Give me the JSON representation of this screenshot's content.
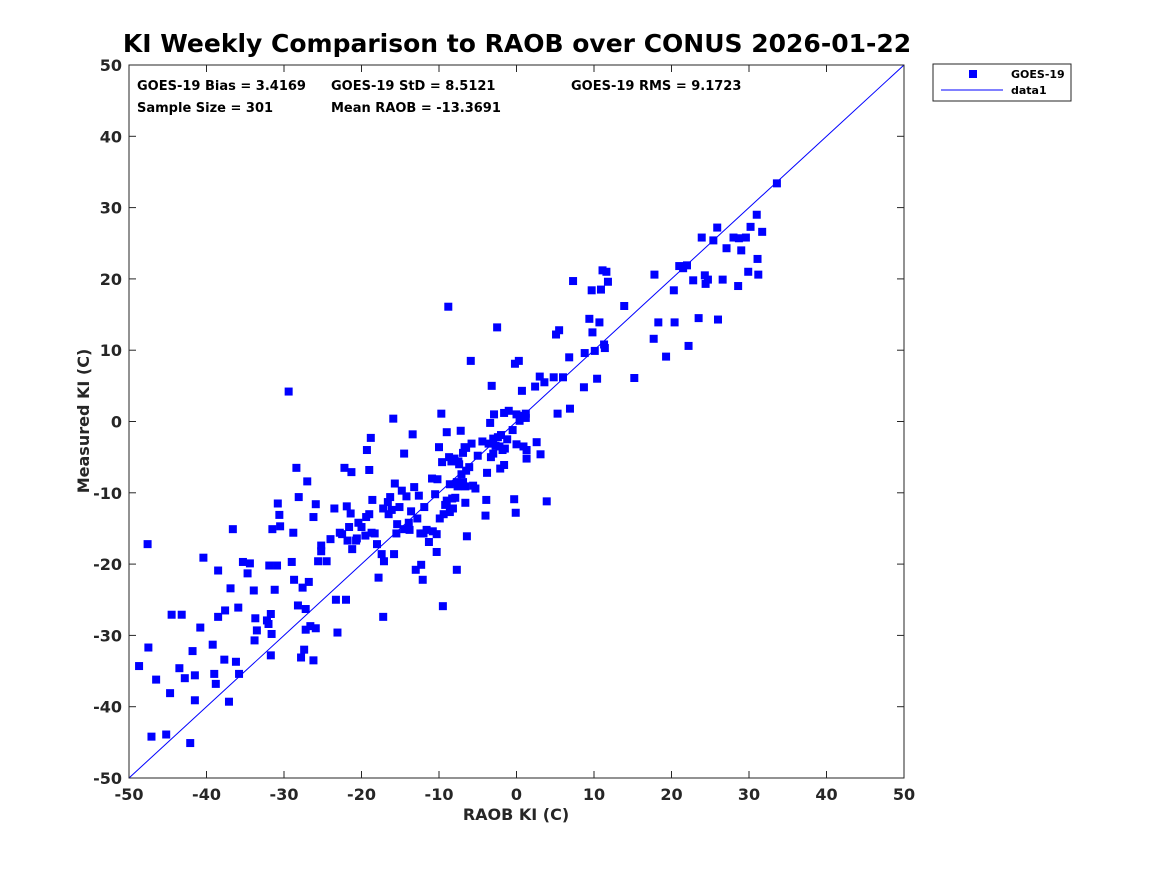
{
  "chart_data": {
    "type": "scatter",
    "title": "KI Weekly Comparison to RAOB over CONUS 2026-01-22",
    "xlabel": "RAOB KI (C)",
    "ylabel": "Measured KI (C)",
    "xlim": [
      -50,
      50
    ],
    "ylim": [
      -50,
      50
    ],
    "xticks": [
      "-50",
      "-40",
      "-30",
      "-20",
      "-10",
      "0",
      "10",
      "20",
      "30",
      "40",
      "50"
    ],
    "yticks": [
      "50",
      "40",
      "30",
      "20",
      "10",
      "0",
      "-10",
      "-20",
      "-30",
      "-40",
      "-50"
    ],
    "grid": false,
    "legend_position": "outside-top-right",
    "stats": {
      "bias": "GOES-19 Bias = 3.4169",
      "std": "GOES-19 StD = 8.5121",
      "rms": "GOES-19 RMS = 9.1723",
      "sample_size": "Sample Size = 301",
      "mean_raob": "Mean RAOB = -13.3691"
    },
    "series": [
      {
        "name": "GOES-19",
        "kind": "scatter",
        "marker": "square",
        "color": "#0000ff",
        "points": [
          [
            -48.7,
            -34.3
          ],
          [
            -47.6,
            -17.2
          ],
          [
            -47.5,
            -31.7
          ],
          [
            -47.1,
            -44.2
          ],
          [
            -46.5,
            -36.2
          ],
          [
            -45.2,
            -43.9
          ],
          [
            -44.7,
            -38.1
          ],
          [
            -44.5,
            -27.1
          ],
          [
            -43.5,
            -34.6
          ],
          [
            -43.2,
            -27.1
          ],
          [
            -42.8,
            -36.0
          ],
          [
            -42.1,
            -45.1
          ],
          [
            -41.8,
            -32.2
          ],
          [
            -41.5,
            -35.6
          ],
          [
            -41.5,
            -39.1
          ],
          [
            -40.8,
            -28.9
          ],
          [
            -40.4,
            -19.1
          ],
          [
            -39.2,
            -31.3
          ],
          [
            -39.0,
            -35.4
          ],
          [
            -38.8,
            -36.8
          ],
          [
            -38.5,
            -27.4
          ],
          [
            -38.5,
            -20.9
          ],
          [
            -37.7,
            -33.4
          ],
          [
            -37.6,
            -26.5
          ],
          [
            -37.1,
            -39.3
          ],
          [
            -36.9,
            -23.4
          ],
          [
            -36.6,
            -15.1
          ],
          [
            -36.2,
            -33.7
          ],
          [
            -35.9,
            -26.1
          ],
          [
            -35.8,
            -35.4
          ],
          [
            -35.3,
            -19.7
          ],
          [
            -34.7,
            -21.3
          ],
          [
            -34.4,
            -19.9
          ],
          [
            -33.9,
            -23.7
          ],
          [
            -33.8,
            -30.7
          ],
          [
            -33.7,
            -27.6
          ],
          [
            -33.5,
            -29.3
          ],
          [
            -32.2,
            -27.9
          ],
          [
            -32.0,
            -28.4
          ],
          [
            -31.9,
            -20.2
          ],
          [
            -31.7,
            -27.0
          ],
          [
            -31.7,
            -32.8
          ],
          [
            -31.6,
            -29.8
          ],
          [
            -31.5,
            -15.1
          ],
          [
            -31.2,
            -23.6
          ],
          [
            -30.9,
            -20.2
          ],
          [
            -30.8,
            -11.5
          ],
          [
            -30.6,
            -13.1
          ],
          [
            -30.5,
            -14.7
          ],
          [
            -29.4,
            4.2
          ],
          [
            -29.0,
            -19.7
          ],
          [
            -28.8,
            -15.6
          ],
          [
            -28.7,
            -22.2
          ],
          [
            -28.4,
            -6.5
          ],
          [
            -28.2,
            -25.8
          ],
          [
            -28.1,
            -10.6
          ],
          [
            -27.8,
            -33.1
          ],
          [
            -27.6,
            -23.3
          ],
          [
            -27.4,
            -32.0
          ],
          [
            -27.2,
            -29.2
          ],
          [
            -27.2,
            -26.3
          ],
          [
            -27.0,
            -8.4
          ],
          [
            -26.8,
            -22.5
          ],
          [
            -26.6,
            -28.7
          ],
          [
            -26.2,
            -13.4
          ],
          [
            -26.2,
            -33.5
          ],
          [
            -25.9,
            -11.6
          ],
          [
            -25.9,
            -29.0
          ],
          [
            -25.6,
            -19.6
          ],
          [
            -25.2,
            -18.2
          ],
          [
            -25.2,
            -17.4
          ],
          [
            -24.5,
            -19.6
          ],
          [
            -24.0,
            -16.5
          ],
          [
            -23.5,
            -12.2
          ],
          [
            -23.3,
            -25.0
          ],
          [
            -23.1,
            -29.6
          ],
          [
            -22.8,
            -15.6
          ],
          [
            -22.5,
            -15.8
          ],
          [
            -22.2,
            -6.5
          ],
          [
            -22.0,
            -25.0
          ],
          [
            -21.9,
            -11.9
          ],
          [
            -21.8,
            -16.7
          ],
          [
            -21.6,
            -14.8
          ],
          [
            -21.4,
            -12.9
          ],
          [
            -21.3,
            -7.1
          ],
          [
            -21.2,
            -17.9
          ],
          [
            -20.7,
            -16.7
          ],
          [
            -20.6,
            -16.4
          ],
          [
            -20.4,
            -14.2
          ],
          [
            -20.0,
            -14.8
          ],
          [
            -19.5,
            -16.0
          ],
          [
            -19.4,
            -13.4
          ],
          [
            -19.3,
            -4.0
          ],
          [
            -19.0,
            -13.0
          ],
          [
            -19.0,
            -6.8
          ],
          [
            -18.8,
            -2.3
          ],
          [
            -18.7,
            -15.6
          ],
          [
            -18.6,
            -11.0
          ],
          [
            -18.3,
            -15.7
          ],
          [
            -18.0,
            -17.2
          ],
          [
            -17.8,
            -21.9
          ],
          [
            -17.4,
            -18.6
          ],
          [
            -17.2,
            -27.4
          ],
          [
            -17.2,
            -12.2
          ],
          [
            -17.1,
            -19.6
          ],
          [
            -16.6,
            -11.3
          ],
          [
            -16.5,
            -13.0
          ],
          [
            -16.3,
            -10.6
          ],
          [
            -16.1,
            -12.4
          ],
          [
            -15.9,
            0.4
          ],
          [
            -15.8,
            -18.6
          ],
          [
            -15.7,
            -8.7
          ],
          [
            -15.5,
            -15.7
          ],
          [
            -15.4,
            -14.4
          ],
          [
            -15.1,
            -12.0
          ],
          [
            -14.8,
            -9.7
          ],
          [
            -14.5,
            -4.5
          ],
          [
            -14.5,
            -15.1
          ],
          [
            -14.2,
            -10.5
          ],
          [
            -13.9,
            -14.2
          ],
          [
            -13.8,
            -15.2
          ],
          [
            -13.6,
            -12.6
          ],
          [
            -13.4,
            -1.8
          ],
          [
            -13.2,
            -9.2
          ],
          [
            -13.0,
            -20.8
          ],
          [
            -12.8,
            -13.6
          ],
          [
            -12.6,
            -10.4
          ],
          [
            -12.4,
            -15.7
          ],
          [
            -12.3,
            -20.1
          ],
          [
            -12.1,
            -22.2
          ],
          [
            -12.0,
            -15.7
          ],
          [
            -11.9,
            -12.0
          ],
          [
            -11.6,
            -15.2
          ],
          [
            -11.3,
            -16.9
          ],
          [
            -10.9,
            -8.0
          ],
          [
            -10.8,
            -15.4
          ],
          [
            -10.5,
            -10.2
          ],
          [
            -10.3,
            -18.3
          ],
          [
            -10.3,
            -15.8
          ],
          [
            -10.2,
            -8.1
          ],
          [
            -10.0,
            -3.6
          ],
          [
            -9.9,
            -13.6
          ],
          [
            -9.7,
            1.1
          ],
          [
            -9.6,
            -5.7
          ],
          [
            -9.5,
            -25.9
          ],
          [
            -9.4,
            -13.0
          ],
          [
            -9.2,
            -11.7
          ],
          [
            -9.0,
            -11.1
          ],
          [
            -9.0,
            -1.5
          ],
          [
            -8.8,
            16.1
          ],
          [
            -8.7,
            -5.0
          ],
          [
            -8.6,
            -8.8
          ],
          [
            -8.6,
            -12.7
          ],
          [
            -8.4,
            -5.6
          ],
          [
            -8.3,
            -10.8
          ],
          [
            -8.2,
            -12.2
          ],
          [
            -8.0,
            -5.2
          ],
          [
            -7.9,
            -10.7
          ],
          [
            -7.7,
            -8.5
          ],
          [
            -7.7,
            -20.8
          ],
          [
            -7.6,
            -9.1
          ],
          [
            -7.5,
            -5.6
          ],
          [
            -7.4,
            -6.0
          ],
          [
            -7.2,
            -1.3
          ],
          [
            -7.1,
            -7.4
          ],
          [
            -6.9,
            -4.4
          ],
          [
            -6.9,
            -8.5
          ],
          [
            -6.7,
            -3.6
          ],
          [
            -6.6,
            -9.1
          ],
          [
            -6.6,
            -11.4
          ],
          [
            -6.5,
            -6.9
          ],
          [
            -6.5,
            -3.7
          ],
          [
            -6.4,
            -16.1
          ],
          [
            -6.1,
            -6.4
          ],
          [
            -5.9,
            8.5
          ],
          [
            -5.8,
            -3.1
          ],
          [
            -5.6,
            -9.0
          ],
          [
            -5.3,
            -9.4
          ],
          [
            -5.0,
            -4.8
          ],
          [
            -4.4,
            -2.8
          ],
          [
            -4.0,
            -13.2
          ],
          [
            -3.9,
            -11.0
          ],
          [
            -3.8,
            -7.2
          ],
          [
            -3.6,
            -3.1
          ],
          [
            -3.4,
            -0.2
          ],
          [
            -3.3,
            -5.0
          ],
          [
            -3.2,
            5.0
          ],
          [
            -3.0,
            -2.4
          ],
          [
            -3.0,
            -4.5
          ],
          [
            -2.9,
            1.0
          ],
          [
            -2.7,
            -3.4
          ],
          [
            -2.5,
            13.2
          ],
          [
            -2.4,
            -2.2
          ],
          [
            -2.2,
            -3.5
          ],
          [
            -2.1,
            -6.6
          ],
          [
            -2.0,
            -1.9
          ],
          [
            -1.8,
            -4.0
          ],
          [
            -1.6,
            1.2
          ],
          [
            -1.6,
            -6.1
          ],
          [
            -1.5,
            -3.8
          ],
          [
            -1.2,
            -2.5
          ],
          [
            -1.0,
            1.5
          ],
          [
            -0.5,
            -1.2
          ],
          [
            -0.3,
            -10.9
          ],
          [
            -0.2,
            8.1
          ],
          [
            -0.1,
            -12.8
          ],
          [
            0.0,
            -3.2
          ],
          [
            0.0,
            1.0
          ],
          [
            0.3,
            8.5
          ],
          [
            0.4,
            0.1
          ],
          [
            0.7,
            4.3
          ],
          [
            0.9,
            -3.5
          ],
          [
            1.0,
            0.8
          ],
          [
            1.2,
            1.1
          ],
          [
            1.2,
            0.5
          ],
          [
            1.3,
            -5.2
          ],
          [
            1.3,
            -4.0
          ],
          [
            2.4,
            4.9
          ],
          [
            2.6,
            -2.9
          ],
          [
            3.0,
            6.3
          ],
          [
            3.1,
            -4.6
          ],
          [
            3.6,
            5.5
          ],
          [
            3.9,
            -11.2
          ],
          [
            4.8,
            6.2
          ],
          [
            5.1,
            12.2
          ],
          [
            5.3,
            1.1
          ],
          [
            5.5,
            12.8
          ],
          [
            6.0,
            6.2
          ],
          [
            6.8,
            9.0
          ],
          [
            6.9,
            1.8
          ],
          [
            7.3,
            19.7
          ],
          [
            8.7,
            4.8
          ],
          [
            8.8,
            9.6
          ],
          [
            9.4,
            14.4
          ],
          [
            9.7,
            18.4
          ],
          [
            9.8,
            12.5
          ],
          [
            10.1,
            9.9
          ],
          [
            10.4,
            6.0
          ],
          [
            10.7,
            13.9
          ],
          [
            10.9,
            18.5
          ],
          [
            11.1,
            21.2
          ],
          [
            11.3,
            10.8
          ],
          [
            11.4,
            10.3
          ],
          [
            11.6,
            21.0
          ],
          [
            11.8,
            19.6
          ],
          [
            13.9,
            16.2
          ],
          [
            15.2,
            6.1
          ],
          [
            17.7,
            11.6
          ],
          [
            17.8,
            20.6
          ],
          [
            18.3,
            13.9
          ],
          [
            19.3,
            9.1
          ],
          [
            20.3,
            18.4
          ],
          [
            20.4,
            13.9
          ],
          [
            21.0,
            21.8
          ],
          [
            21.5,
            21.5
          ],
          [
            22.0,
            21.9
          ],
          [
            22.2,
            10.6
          ],
          [
            22.8,
            19.8
          ],
          [
            23.5,
            14.5
          ],
          [
            23.9,
            25.8
          ],
          [
            24.3,
            20.5
          ],
          [
            24.4,
            19.3
          ],
          [
            24.7,
            19.9
          ],
          [
            25.4,
            25.4
          ],
          [
            25.9,
            27.2
          ],
          [
            26.0,
            14.3
          ],
          [
            26.6,
            19.9
          ],
          [
            27.1,
            24.3
          ],
          [
            28.0,
            25.8
          ],
          [
            28.6,
            19.0
          ],
          [
            28.7,
            25.7
          ],
          [
            29.0,
            24.0
          ],
          [
            29.6,
            25.8
          ],
          [
            29.9,
            21.0
          ],
          [
            30.2,
            27.3
          ],
          [
            31.0,
            29.0
          ],
          [
            31.1,
            22.8
          ],
          [
            31.2,
            20.6
          ],
          [
            31.7,
            26.6
          ],
          [
            33.6,
            33.4
          ]
        ]
      },
      {
        "name": "data1",
        "kind": "line",
        "color": "#0000ff",
        "x": [
          -50,
          50
        ],
        "y": [
          -50,
          50
        ]
      }
    ]
  }
}
